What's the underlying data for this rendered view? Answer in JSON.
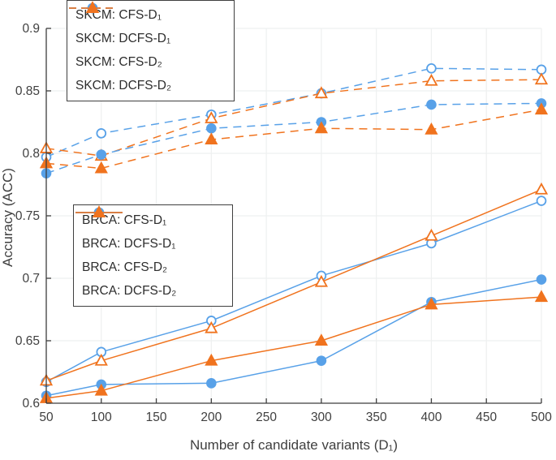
{
  "colors": {
    "blue": "#58a1e8",
    "orange": "#f0731e",
    "axis": "#3f3f3f",
    "grid": "#eef0f0",
    "legend_border": "#3f3f3f",
    "background": "#ffffff"
  },
  "chart_data": {
    "type": "line",
    "title": "",
    "xlabel": "Number of candidate variants (D₁)",
    "ylabel": "Accuracy (ACC)",
    "xlim": [
      50,
      500
    ],
    "ylim": [
      0.6,
      0.9
    ],
    "grid": true,
    "x_ticks": [
      50,
      100,
      150,
      200,
      250,
      300,
      350,
      400,
      450,
      500
    ],
    "x_tick_labels": [
      "50",
      "100",
      "150",
      "200",
      "250",
      "300",
      "350",
      "400",
      "450",
      "500"
    ],
    "y_ticks": [
      0.6,
      0.65,
      0.7,
      0.75,
      0.8,
      0.85,
      0.9
    ],
    "y_tick_labels": [
      "0.6",
      "0.65",
      "0.7",
      "0.75",
      "0.8",
      "0.85",
      "0.9"
    ],
    "x": [
      50,
      100,
      200,
      300,
      400,
      500
    ],
    "series": [
      {
        "name": "SKCM: CFS-D₁",
        "group": "SKCM",
        "color": "blue",
        "line": "dashed",
        "marker": "circle-open",
        "values": [
          0.797,
          0.816,
          0.831,
          0.848,
          0.868,
          0.867
        ]
      },
      {
        "name": "SKCM: DCFS-D₁",
        "group": "SKCM",
        "color": "orange",
        "line": "dashed",
        "marker": "triangle-open",
        "values": [
          0.804,
          0.798,
          0.828,
          0.848,
          0.858,
          0.859
        ]
      },
      {
        "name": "SKCM: CFS-D₂",
        "group": "SKCM",
        "color": "blue",
        "line": "dashed",
        "marker": "circle-filled",
        "values": [
          0.784,
          0.799,
          0.82,
          0.825,
          0.839,
          0.84
        ]
      },
      {
        "name": "SKCM: DCFS-D₂",
        "group": "SKCM",
        "color": "orange",
        "line": "dashed",
        "marker": "triangle-filled",
        "values": [
          0.792,
          0.788,
          0.811,
          0.82,
          0.819,
          0.835
        ]
      },
      {
        "name": "BRCA: CFS-D₁",
        "group": "BRCA",
        "color": "blue",
        "line": "solid",
        "marker": "circle-open",
        "values": [
          0.617,
          0.641,
          0.666,
          0.702,
          0.728,
          0.762
        ]
      },
      {
        "name": "BRCA: DCFS-D₁",
        "group": "BRCA",
        "color": "orange",
        "line": "solid",
        "marker": "triangle-open",
        "values": [
          0.618,
          0.634,
          0.66,
          0.697,
          0.734,
          0.771
        ]
      },
      {
        "name": "BRCA: CFS-D₂",
        "group": "BRCA",
        "color": "blue",
        "line": "solid",
        "marker": "circle-filled",
        "values": [
          0.606,
          0.615,
          0.616,
          0.634,
          0.681,
          0.699
        ]
      },
      {
        "name": "BRCA: DCFS-D₂",
        "group": "BRCA",
        "color": "orange",
        "line": "solid",
        "marker": "triangle-filled",
        "values": [
          0.604,
          0.61,
          0.634,
          0.65,
          0.679,
          0.685
        ]
      }
    ],
    "legends": [
      {
        "group": "SKCM",
        "position": "upper-left",
        "series_indices": [
          0,
          1,
          2,
          3
        ]
      },
      {
        "group": "BRCA",
        "position": "middle-left",
        "series_indices": [
          4,
          5,
          6,
          7
        ]
      }
    ]
  }
}
